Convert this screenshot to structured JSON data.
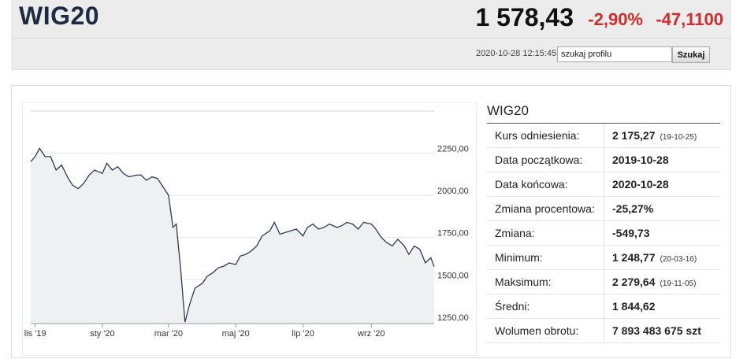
{
  "header": {
    "title": "WIG20",
    "price": "1 578,43",
    "change_pct": "-2,90%",
    "change_abs": "-47,1100",
    "timestamp": "2020-10-28 12:15:45",
    "search_value": "szukaj profilu",
    "search_button": "Szukaj"
  },
  "colors": {
    "negative": "#d62b2b",
    "line": "#2b3a55",
    "area": "#eef0f2"
  },
  "info": {
    "title": "WIG20",
    "rows": [
      {
        "label": "Kurs odniesienia:",
        "value": "2 175,27",
        "note": "(19-10-25)"
      },
      {
        "label": "Data początkowa:",
        "value": "2019-10-28",
        "note": ""
      },
      {
        "label": "Data końcowa:",
        "value": "2020-10-28",
        "note": ""
      },
      {
        "label": "Zmiana procentowa:",
        "value": "-25,27%",
        "note": ""
      },
      {
        "label": "Zmiana:",
        "value": "-549,73",
        "note": ""
      },
      {
        "label": "Minimum:",
        "value": "1 248,77",
        "note": "(20-03-16)"
      },
      {
        "label": "Maksimum:",
        "value": "2 279,64",
        "note": "(19-11-05)"
      },
      {
        "label": "Średni:",
        "value": "1 844,62",
        "note": ""
      },
      {
        "label": "Wolumen obrotu:",
        "value": "7 893 483 675 szt",
        "note": ""
      }
    ]
  },
  "chart_data": {
    "type": "area",
    "x_ticks": [
      "lis '19",
      "sty '20",
      "mar '20",
      "maj '20",
      "lip '20",
      "wrz '20"
    ],
    "y_ticks": [
      "2250,00",
      "2000,00",
      "1750,00",
      "1500,00",
      "1250,00"
    ],
    "y_tick_values": [
      2250,
      2000,
      1750,
      1500,
      1250
    ],
    "ylim": [
      1240,
      2500
    ],
    "x_range": [
      "2019-10-28",
      "2020-10-28"
    ],
    "grid": true,
    "x": [
      "2019-10-28",
      "2019-11-01",
      "2019-11-05",
      "2019-11-10",
      "2019-11-15",
      "2019-11-20",
      "2019-11-25",
      "2019-12-01",
      "2019-12-05",
      "2019-12-10",
      "2019-12-15",
      "2019-12-20",
      "2019-12-25",
      "2020-01-01",
      "2020-01-05",
      "2020-01-10",
      "2020-01-15",
      "2020-01-20",
      "2020-01-25",
      "2020-02-01",
      "2020-02-05",
      "2020-02-10",
      "2020-02-15",
      "2020-02-20",
      "2020-02-25",
      "2020-03-01",
      "2020-03-05",
      "2020-03-08",
      "2020-03-12",
      "2020-03-16",
      "2020-03-20",
      "2020-03-25",
      "2020-04-01",
      "2020-04-05",
      "2020-04-10",
      "2020-04-15",
      "2020-04-20",
      "2020-04-25",
      "2020-05-01",
      "2020-05-05",
      "2020-05-10",
      "2020-05-15",
      "2020-05-20",
      "2020-05-25",
      "2020-06-01",
      "2020-06-05",
      "2020-06-10",
      "2020-06-15",
      "2020-06-20",
      "2020-06-25",
      "2020-07-01",
      "2020-07-05",
      "2020-07-10",
      "2020-07-15",
      "2020-07-20",
      "2020-07-25",
      "2020-08-01",
      "2020-08-05",
      "2020-08-10",
      "2020-08-15",
      "2020-08-20",
      "2020-08-25",
      "2020-09-01",
      "2020-09-05",
      "2020-09-10",
      "2020-09-15",
      "2020-09-20",
      "2020-09-25",
      "2020-10-01",
      "2020-10-05",
      "2020-10-10",
      "2020-10-15",
      "2020-10-20",
      "2020-10-25",
      "2020-10-28"
    ],
    "values": [
      2200,
      2230,
      2279,
      2230,
      2230,
      2150,
      2180,
      2100,
      2060,
      2040,
      2070,
      2120,
      2150,
      2130,
      2190,
      2150,
      2170,
      2130,
      2110,
      2120,
      2120,
      2090,
      2110,
      2100,
      2050,
      2000,
      1810,
      1830,
      1560,
      1249,
      1350,
      1450,
      1480,
      1520,
      1540,
      1570,
      1580,
      1600,
      1590,
      1640,
      1650,
      1670,
      1700,
      1760,
      1790,
      1840,
      1770,
      1780,
      1790,
      1800,
      1760,
      1810,
      1830,
      1800,
      1810,
      1830,
      1810,
      1820,
      1840,
      1830,
      1800,
      1840,
      1830,
      1800,
      1750,
      1720,
      1700,
      1740,
      1700,
      1650,
      1700,
      1680,
      1600,
      1630,
      1578
    ]
  }
}
